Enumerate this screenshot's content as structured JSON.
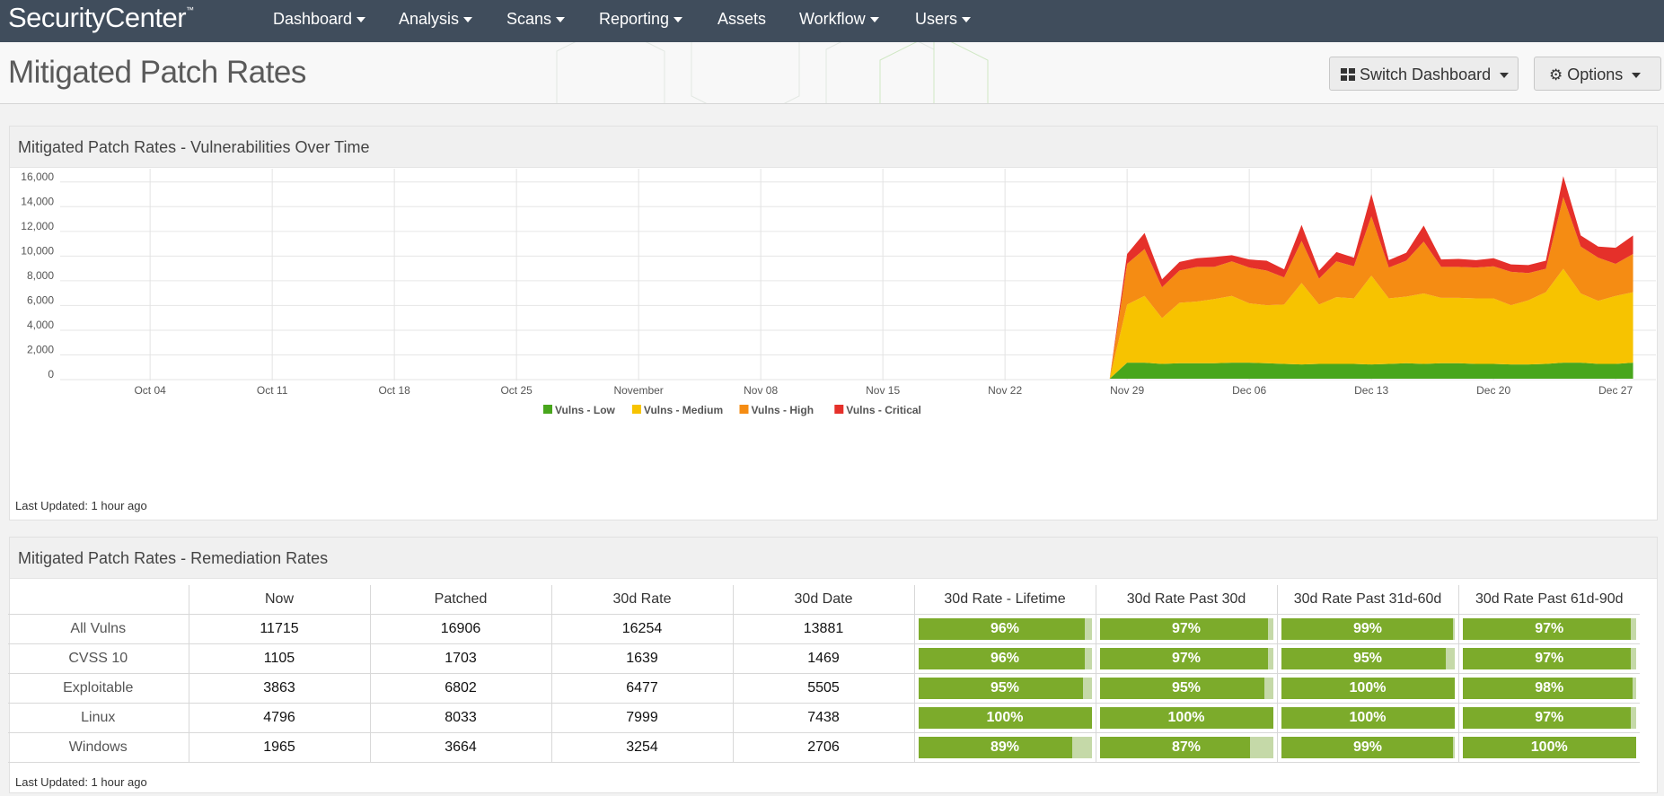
{
  "nav": {
    "logo": "SecurityCenter",
    "logo_mark": "™",
    "items": [
      "Dashboard",
      "Analysis",
      "Scans",
      "Reporting",
      "Assets",
      "Workflow",
      "Users"
    ]
  },
  "page": {
    "title": "Mitigated Patch Rates",
    "switch_dashboard": "Switch Dashboard",
    "options": "Options"
  },
  "chart_panel": {
    "title": "Mitigated Patch Rates - Vulnerabilities Over Time",
    "last_updated": "Last Updated: 1 hour ago"
  },
  "chart_data": {
    "type": "area",
    "stacked": true,
    "y_ticks": [
      "16,000",
      "14,000",
      "12,000",
      "10,000",
      "8,000",
      "6,000",
      "4,000",
      "2,000",
      "0"
    ],
    "x_ticks": [
      "Oct 04",
      "Oct 11",
      "Oct 18",
      "Oct 25",
      "November",
      "Nov 08",
      "Nov 15",
      "Nov 22",
      "Nov 29",
      "Dec 06",
      "Dec 13",
      "Dec 20",
      "Dec 27"
    ],
    "ylim": [
      0,
      17000
    ],
    "legend_position": "bottom-center",
    "x_start": "Sep 29",
    "x": [
      "Nov 28",
      "Nov 29",
      "Nov 30",
      "Dec 01",
      "Dec 02",
      "Dec 03",
      "Dec 04",
      "Dec 05",
      "Dec 06",
      "Dec 07",
      "Dec 08",
      "Dec 09",
      "Dec 10",
      "Dec 11",
      "Dec 12",
      "Dec 13",
      "Dec 14",
      "Dec 15",
      "Dec 16",
      "Dec 17",
      "Dec 18",
      "Dec 19",
      "Dec 20",
      "Dec 21",
      "Dec 22",
      "Dec 23",
      "Dec 24",
      "Dec 25",
      "Dec 26",
      "Dec 27",
      "Dec 28"
    ],
    "series": [
      {
        "name": "Vulns - Low",
        "color": "#48a61c",
        "values": [
          0,
          1300,
          1300,
          1200,
          1250,
          1250,
          1250,
          1300,
          1300,
          1250,
          1200,
          1150,
          1200,
          1200,
          1200,
          1150,
          1200,
          1250,
          1200,
          1250,
          1250,
          1200,
          1200,
          1150,
          1150,
          1200,
          1300,
          1300,
          1200,
          1200,
          1300
        ]
      },
      {
        "name": "Vulns - Medium",
        "color": "#f7c300",
        "values": [
          0,
          4700,
          5400,
          3700,
          4900,
          5000,
          5200,
          5400,
          4800,
          4700,
          4800,
          6600,
          4800,
          5400,
          5300,
          7200,
          5300,
          5400,
          5700,
          5300,
          5300,
          5300,
          5300,
          4800,
          5200,
          5800,
          7600,
          5600,
          5100,
          5500,
          5700
        ]
      },
      {
        "name": "Vulns - High",
        "color": "#f58c13",
        "values": [
          0,
          3300,
          3800,
          2500,
          2600,
          2800,
          2600,
          2800,
          2900,
          2800,
          2200,
          3400,
          2100,
          2900,
          2600,
          4800,
          2500,
          2900,
          4200,
          2500,
          2500,
          2500,
          2600,
          2700,
          2200,
          1900,
          5800,
          3800,
          3500,
          2600,
          3100
        ]
      },
      {
        "name": "Vulns - Critical",
        "color": "#e5302a",
        "values": [
          0,
          800,
          1300,
          650,
          700,
          700,
          800,
          500,
          650,
          800,
          650,
          1300,
          650,
          750,
          700,
          1800,
          600,
          650,
          1300,
          600,
          650,
          600,
          650,
          600,
          650,
          650,
          1700,
          900,
          900,
          1300,
          1500
        ]
      }
    ]
  },
  "table_panel": {
    "title": "Mitigated Patch Rates - Remediation Rates",
    "last_updated": "Last Updated: 1 hour ago",
    "columns": [
      "",
      "Now",
      "Patched",
      "30d Rate",
      "30d Date",
      "30d Rate - Lifetime",
      "30d Rate Past 30d",
      "30d Rate Past 31d-60d",
      "30d Rate Past 61d-90d"
    ],
    "rows": [
      {
        "label": "All Vulns",
        "now": "11715",
        "patched": "16906",
        "rate30": "16254",
        "date30": "13881",
        "bars": [
          {
            "text": "96%",
            "pct": 96
          },
          {
            "text": "97%",
            "pct": 97
          },
          {
            "text": "99%",
            "pct": 99
          },
          {
            "text": "97%",
            "pct": 97
          }
        ]
      },
      {
        "label": "CVSS 10",
        "now": "1105",
        "patched": "1703",
        "rate30": "1639",
        "date30": "1469",
        "bars": [
          {
            "text": "96%",
            "pct": 96
          },
          {
            "text": "97%",
            "pct": 97
          },
          {
            "text": "95%",
            "pct": 95
          },
          {
            "text": "97%",
            "pct": 97
          }
        ]
      },
      {
        "label": "Exploitable",
        "now": "3863",
        "patched": "6802",
        "rate30": "6477",
        "date30": "5505",
        "bars": [
          {
            "text": "95%",
            "pct": 95
          },
          {
            "text": "95%",
            "pct": 95
          },
          {
            "text": "100%",
            "pct": 100
          },
          {
            "text": "98%",
            "pct": 98
          }
        ]
      },
      {
        "label": "Linux",
        "now": "4796",
        "patched": "8033",
        "rate30": "7999",
        "date30": "7438",
        "bars": [
          {
            "text": "100%",
            "pct": 100
          },
          {
            "text": "100%",
            "pct": 100
          },
          {
            "text": "100%",
            "pct": 100
          },
          {
            "text": "97%",
            "pct": 97
          }
        ]
      },
      {
        "label": "Windows",
        "now": "1965",
        "patched": "3664",
        "rate30": "3254",
        "date30": "2706",
        "bars": [
          {
            "text": "89%",
            "pct": 89
          },
          {
            "text": "87%",
            "pct": 87
          },
          {
            "text": "99%",
            "pct": 99
          },
          {
            "text": "100%",
            "pct": 100
          }
        ]
      }
    ]
  }
}
